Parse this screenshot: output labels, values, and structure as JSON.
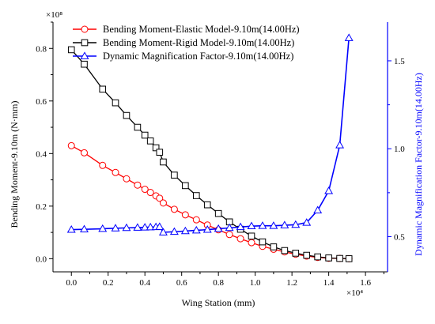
{
  "chart_data": {
    "type": "line",
    "xlabel": "Wing Station (mm)",
    "x_multiplier": "×10⁴",
    "ylabel_left": "Bending Moment-9.10m (N·mm)",
    "y_multiplier_left": "×10⁸",
    "ylabel_right": "Dynamic Magnification Factor-9.10m(14.00Hz)",
    "xlim": [
      -0.1,
      1.72
    ],
    "ylim_left": [
      -0.05,
      0.9
    ],
    "ylim_right": [
      0.3,
      1.72
    ],
    "x_ticks": [
      "0.0",
      "0.2",
      "0.4",
      "0.6",
      "0.8",
      "1.0",
      "1.2",
      "1.4",
      "1.6"
    ],
    "y_ticks_left": [
      "0.0",
      "0.2",
      "0.4",
      "0.6",
      "0.8"
    ],
    "y_ticks_right": [
      "0.5",
      "1.0",
      "1.5"
    ],
    "legend_position": "top",
    "grid": false,
    "series": [
      {
        "name": "Bending Moment-Elastic Model-9.10m(14.00Hz)",
        "axis": "left",
        "color": "#ff0000",
        "marker": "circle",
        "x": [
          0.0,
          0.07,
          0.17,
          0.24,
          0.3,
          0.36,
          0.4,
          0.43,
          0.46,
          0.48,
          0.5,
          0.56,
          0.62,
          0.68,
          0.74,
          0.8,
          0.86,
          0.92,
          0.98,
          1.04,
          1.1,
          1.16,
          1.22,
          1.28,
          1.34,
          1.4,
          1.46,
          1.51
        ],
        "values": [
          0.43,
          0.403,
          0.355,
          0.328,
          0.304,
          0.28,
          0.264,
          0.252,
          0.239,
          0.23,
          0.212,
          0.188,
          0.167,
          0.148,
          0.128,
          0.11,
          0.092,
          0.076,
          0.061,
          0.047,
          0.036,
          0.026,
          0.017,
          0.01,
          0.005,
          0.002,
          0.001,
          0.0
        ]
      },
      {
        "name": "Bending Moment-Rigid Model-9.10m(14.00Hz)",
        "axis": "left",
        "color": "#000000",
        "marker": "square",
        "x": [
          0.0,
          0.07,
          0.17,
          0.24,
          0.3,
          0.36,
          0.4,
          0.43,
          0.46,
          0.48,
          0.5,
          0.56,
          0.62,
          0.68,
          0.74,
          0.8,
          0.86,
          0.92,
          0.98,
          1.04,
          1.1,
          1.16,
          1.22,
          1.28,
          1.34,
          1.4,
          1.46,
          1.51
        ],
        "values": [
          0.795,
          0.74,
          0.645,
          0.593,
          0.545,
          0.5,
          0.47,
          0.448,
          0.422,
          0.405,
          0.368,
          0.318,
          0.278,
          0.24,
          0.205,
          0.172,
          0.14,
          0.112,
          0.086,
          0.064,
          0.045,
          0.031,
          0.021,
          0.013,
          0.007,
          0.003,
          0.001,
          0.0
        ]
      },
      {
        "name": "Dynamic Magnification Factor-9.10m(14.00Hz)",
        "axis": "right",
        "color": "#0000ff",
        "marker": "triangle",
        "x": [
          0.0,
          0.07,
          0.17,
          0.24,
          0.3,
          0.36,
          0.4,
          0.43,
          0.46,
          0.48,
          0.5,
          0.56,
          0.62,
          0.68,
          0.74,
          0.8,
          0.86,
          0.92,
          0.98,
          1.04,
          1.1,
          1.16,
          1.22,
          1.28,
          1.34,
          1.4,
          1.46,
          1.51
        ],
        "values": [
          0.54,
          0.542,
          0.545,
          0.548,
          0.55,
          0.552,
          0.553,
          0.554,
          0.555,
          0.556,
          0.525,
          0.528,
          0.532,
          0.536,
          0.54,
          0.545,
          0.55,
          0.555,
          0.56,
          0.562,
          0.562,
          0.565,
          0.568,
          0.58,
          0.65,
          0.76,
          1.02,
          1.63
        ]
      }
    ]
  }
}
